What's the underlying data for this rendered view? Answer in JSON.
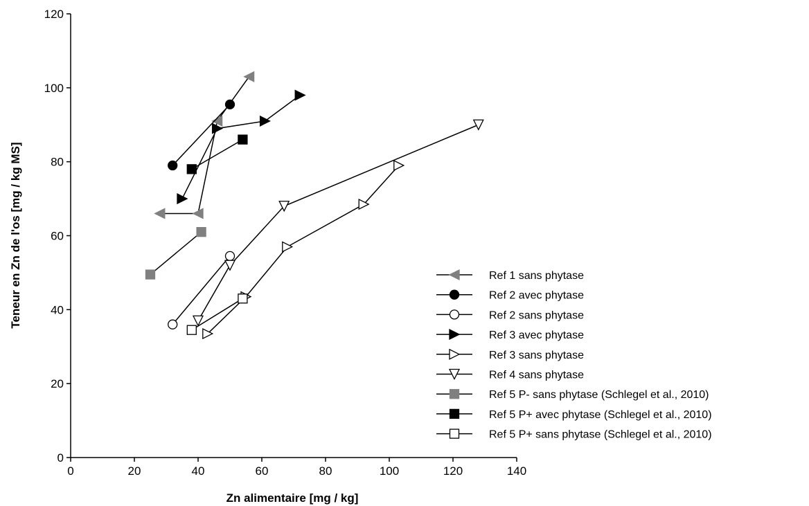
{
  "chart_data": {
    "type": "line",
    "xlabel": "Zn alimentaire [mg / kg]",
    "ylabel": "Teneur en Zn de l'os [mg / kg MS]",
    "xlim": [
      0,
      140
    ],
    "ylim": [
      0,
      120
    ],
    "xticks": [
      0,
      20,
      40,
      60,
      80,
      100,
      120,
      140
    ],
    "yticks": [
      0,
      20,
      40,
      60,
      80,
      100,
      120
    ],
    "grid": false,
    "legend_position": "bottom-right",
    "series": [
      {
        "name": "Ref 1 sans phytase",
        "marker": "triangle-left",
        "fill": "#808080",
        "points": [
          [
            28,
            66
          ],
          [
            40,
            66
          ],
          [
            46,
            91
          ],
          [
            56,
            103
          ]
        ]
      },
      {
        "name": "Ref 2 avec phytase",
        "marker": "circle",
        "fill": "#000000",
        "points": [
          [
            32,
            79
          ],
          [
            50,
            95.5
          ]
        ]
      },
      {
        "name": "Ref 2 sans phytase",
        "marker": "circle",
        "fill": "none",
        "points": [
          [
            32,
            36
          ],
          [
            50,
            54.5
          ]
        ]
      },
      {
        "name": "Ref 3 avec phytase",
        "marker": "triangle-right",
        "fill": "#000000",
        "points": [
          [
            35,
            70
          ],
          [
            46,
            89
          ],
          [
            61,
            91
          ],
          [
            72,
            98
          ]
        ]
      },
      {
        "name": "Ref 3 sans phytase",
        "marker": "triangle-right",
        "fill": "none",
        "points": [
          [
            43,
            33.5
          ],
          [
            55,
            43.5
          ],
          [
            68,
            57
          ],
          [
            92,
            68.5
          ],
          [
            103,
            79
          ]
        ]
      },
      {
        "name": "Ref 4 sans phytase",
        "marker": "triangle-down",
        "fill": "none",
        "points": [
          [
            40,
            37
          ],
          [
            50,
            52
          ],
          [
            67,
            68
          ],
          [
            128,
            90
          ]
        ]
      },
      {
        "name": "Ref 5 P- sans phytase (Schlegel et al., 2010)",
        "marker": "square",
        "fill": "#808080",
        "points": [
          [
            25,
            49.5
          ],
          [
            41,
            61
          ]
        ]
      },
      {
        "name": "Ref 5 P+ avec phytase (Schlegel et al., 2010)",
        "marker": "square",
        "fill": "#000000",
        "points": [
          [
            38,
            78
          ],
          [
            54,
            86
          ]
        ]
      },
      {
        "name": "Ref 5 P+ sans phytase (Schlegel et al., 2010)",
        "marker": "square",
        "fill": "none",
        "points": [
          [
            38,
            34.5
          ],
          [
            54,
            43
          ]
        ]
      }
    ]
  }
}
